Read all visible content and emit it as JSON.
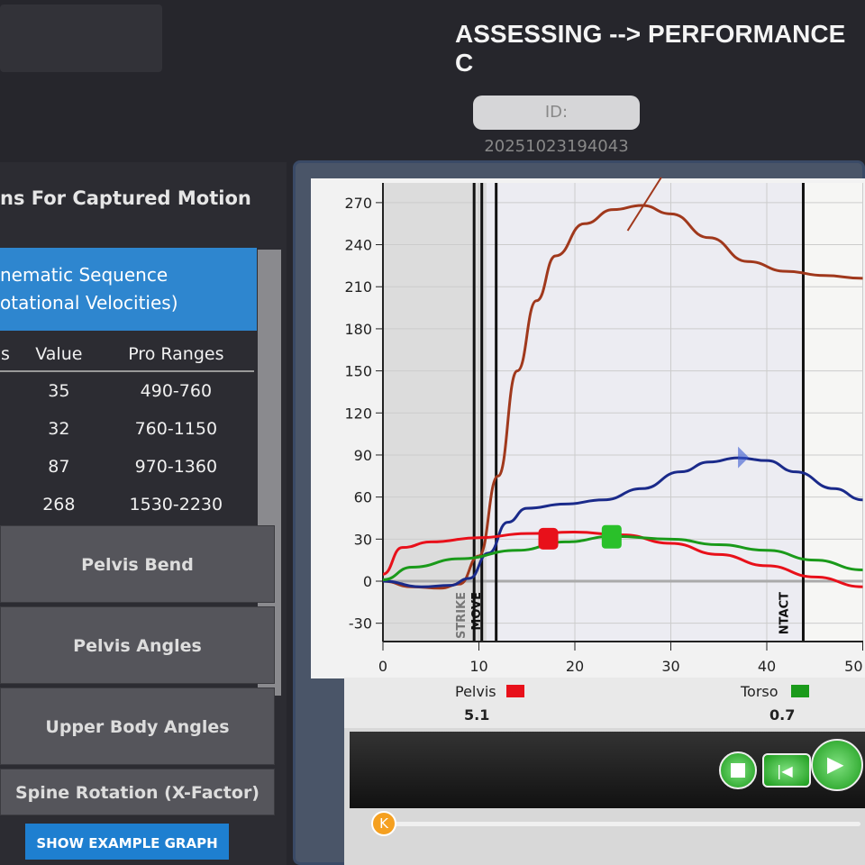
{
  "header": {
    "title": "ASSESSING --> PERFORMANCE C",
    "id_label": "ID: 20251023194043"
  },
  "sidebar": {
    "heading": "ns For Captured Motion",
    "selected": {
      "line1": "nematic Sequence",
      "line2": "otational Velocities)"
    },
    "table": {
      "columns": [
        "s",
        "Value",
        "Pro Ranges"
      ],
      "rows": [
        {
          "value": "35",
          "range": "490-760"
        },
        {
          "value": "32",
          "range": "760-1150"
        },
        {
          "value": "87",
          "range": "970-1360"
        },
        {
          "value": "268",
          "range": "1530-2230"
        }
      ]
    },
    "buttons": [
      "Pelvis Bend",
      "Pelvis Angles",
      "Upper Body Angles",
      "Spine Rotation (X-Factor)"
    ],
    "example_button": "SHOW EXAMPLE GRAPH"
  },
  "chart_data": {
    "type": "line",
    "xlim": [
      0,
      50
    ],
    "ylim": [
      -43,
      280
    ],
    "x_ticks": [
      "0",
      "10",
      "20",
      "30",
      "40",
      "50"
    ],
    "y_ticks": [
      "-30",
      "0",
      "30",
      "60",
      "90",
      "120",
      "150",
      "180",
      "210",
      "240",
      "270"
    ],
    "event_labels": [
      "STRIKE",
      "MOVE",
      "NTACT"
    ],
    "series": [
      {
        "color": "#a0381c",
        "points": [
          [
            0,
            0
          ],
          [
            3,
            -4
          ],
          [
            6,
            -5
          ],
          [
            8,
            -2
          ],
          [
            10,
            18
          ],
          [
            12,
            75
          ],
          [
            14,
            150
          ],
          [
            16,
            200
          ],
          [
            18,
            232
          ],
          [
            21,
            255
          ],
          [
            24,
            265
          ],
          [
            27,
            268
          ],
          [
            30,
            262
          ],
          [
            34,
            245
          ],
          [
            38,
            228
          ],
          [
            42,
            221
          ],
          [
            46,
            218
          ],
          [
            50,
            216
          ]
        ]
      },
      {
        "color": "#1a2a8a",
        "points": [
          [
            0,
            0
          ],
          [
            4,
            -4
          ],
          [
            7,
            -3
          ],
          [
            9,
            2
          ],
          [
            11,
            20
          ],
          [
            13,
            42
          ],
          [
            15,
            52
          ],
          [
            19,
            55
          ],
          [
            23,
            58
          ],
          [
            27,
            66
          ],
          [
            31,
            78
          ],
          [
            34,
            85
          ],
          [
            37,
            88
          ],
          [
            40,
            86
          ],
          [
            43,
            78
          ],
          [
            47,
            66
          ],
          [
            50,
            58
          ]
        ]
      },
      {
        "name": "Pelvis",
        "color": "#e8101a",
        "points": [
          [
            0,
            5
          ],
          [
            2,
            24
          ],
          [
            5,
            28
          ],
          [
            10,
            31
          ],
          [
            15,
            34
          ],
          [
            20,
            35
          ],
          [
            25,
            33
          ],
          [
            30,
            27
          ],
          [
            35,
            19
          ],
          [
            40,
            11
          ],
          [
            45,
            3
          ],
          [
            50,
            -4
          ]
        ]
      },
      {
        "name": "Torso",
        "color": "#1a9a1a",
        "points": [
          [
            0,
            1
          ],
          [
            3,
            10
          ],
          [
            8,
            16
          ],
          [
            14,
            22
          ],
          [
            19,
            28
          ],
          [
            24,
            32
          ],
          [
            30,
            30
          ],
          [
            35,
            26
          ],
          [
            40,
            22
          ],
          [
            45,
            15
          ],
          [
            50,
            8
          ]
        ]
      }
    ],
    "event_x": [
      9.5,
      10.3,
      11.8,
      43.8
    ]
  },
  "legend": [
    {
      "name": "Pelvis",
      "value": "5.1",
      "color": "#e8101a"
    },
    {
      "name": "Torso",
      "value": "0.7",
      "color": "#1a9a1a"
    }
  ],
  "player": {
    "knob": "K"
  }
}
